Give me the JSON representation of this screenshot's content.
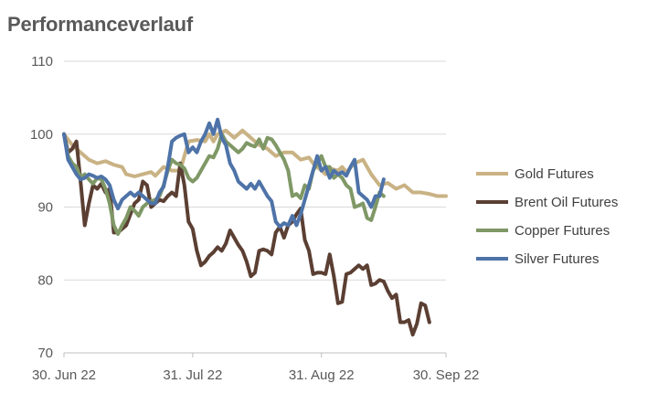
{
  "title": "Performanceverlauf",
  "chart_data": {
    "type": "line",
    "title": "Performanceverlauf",
    "xlabel": "",
    "ylabel": "",
    "ylim": [
      70,
      110
    ],
    "yticks": [
      70,
      80,
      90,
      100,
      110
    ],
    "grid": "horizontal",
    "legend_placement": "right",
    "x_tick_labels": [
      {
        "label": "30. Jun 22",
        "day": 0
      },
      {
        "label": "31. Jul 22",
        "day": 31
      },
      {
        "label": "31. Aug 22",
        "day": 62
      },
      {
        "label": "30. Sep 22",
        "day": 92
      }
    ],
    "x_range": [
      0,
      92
    ],
    "series": [
      {
        "name": "Gold Futures",
        "color": "#c9b284",
        "points": [
          [
            0,
            100
          ],
          [
            2,
            98.5
          ],
          [
            4,
            97.5
          ],
          [
            6,
            96.5
          ],
          [
            8,
            96
          ],
          [
            10,
            96.3
          ],
          [
            12,
            95.8
          ],
          [
            14,
            95.5
          ],
          [
            15,
            94.5
          ],
          [
            17,
            94.2
          ],
          [
            19,
            94.5
          ],
          [
            21,
            94.8
          ],
          [
            22,
            94.3
          ],
          [
            24,
            95.5
          ],
          [
            26,
            95
          ],
          [
            28,
            95
          ],
          [
            30,
            99
          ],
          [
            32,
            99.2
          ],
          [
            34,
            99
          ],
          [
            35,
            100
          ],
          [
            36,
            99
          ],
          [
            37,
            100
          ],
          [
            39,
            100.5
          ],
          [
            41,
            99.5
          ],
          [
            43,
            100.5
          ],
          [
            45,
            99.5
          ],
          [
            47,
            98.5
          ],
          [
            49,
            98
          ],
          [
            51,
            97
          ],
          [
            53,
            97.5
          ],
          [
            55,
            97.5
          ],
          [
            57,
            96.5
          ],
          [
            59,
            96.8
          ],
          [
            60,
            96
          ],
          [
            62,
            95
          ],
          [
            63,
            94.5
          ],
          [
            64,
            95.3
          ],
          [
            66,
            95
          ],
          [
            67,
            95.5
          ],
          [
            68,
            94.8
          ],
          [
            70,
            96
          ],
          [
            72,
            96.5
          ],
          [
            74,
            94.5
          ],
          [
            76,
            93
          ],
          [
            78,
            93.3
          ],
          [
            80,
            92.5
          ],
          [
            82,
            93
          ],
          [
            84,
            92
          ],
          [
            86,
            92
          ],
          [
            88,
            91.8
          ],
          [
            90,
            91.5
          ],
          [
            92,
            91.5
          ]
        ]
      },
      {
        "name": "Brent Oil Futures",
        "color": "#5b3f33",
        "points": [
          [
            0,
            100
          ],
          [
            1,
            97.5
          ],
          [
            2,
            98
          ],
          [
            3,
            99
          ],
          [
            4,
            93.5
          ],
          [
            5,
            87.5
          ],
          [
            6,
            90.5
          ],
          [
            7,
            93
          ],
          [
            8,
            92.5
          ],
          [
            9,
            93.2
          ],
          [
            10,
            92
          ],
          [
            11,
            92.5
          ],
          [
            12,
            86.5
          ],
          [
            13,
            86.5
          ],
          [
            14,
            87
          ],
          [
            15,
            87.5
          ],
          [
            16,
            89
          ],
          [
            17,
            90.5
          ],
          [
            18,
            91
          ],
          [
            19,
            93.5
          ],
          [
            20,
            93
          ],
          [
            21,
            90
          ],
          [
            22,
            90.5
          ],
          [
            23,
            91
          ],
          [
            24,
            90.8
          ],
          [
            25,
            91.5
          ],
          [
            26,
            92
          ],
          [
            27,
            91.5
          ],
          [
            28,
            96
          ],
          [
            29,
            93
          ],
          [
            30,
            88
          ],
          [
            31,
            87
          ],
          [
            32,
            84
          ],
          [
            33,
            82
          ],
          [
            34,
            82.5
          ],
          [
            35,
            83.3
          ],
          [
            36,
            83.8
          ],
          [
            37,
            84.5
          ],
          [
            38,
            84
          ],
          [
            39,
            85
          ],
          [
            40,
            86.8
          ],
          [
            41,
            85.8
          ],
          [
            42,
            84.8
          ],
          [
            43,
            84
          ],
          [
            44,
            82.5
          ],
          [
            45,
            80.5
          ],
          [
            46,
            81
          ],
          [
            47,
            84
          ],
          [
            48,
            84.2
          ],
          [
            49,
            84
          ],
          [
            50,
            83.5
          ],
          [
            51,
            86.5
          ],
          [
            52,
            87.3
          ],
          [
            53,
            85.8
          ],
          [
            54,
            87.5
          ],
          [
            55,
            88
          ],
          [
            56,
            89
          ],
          [
            57,
            89.8
          ],
          [
            58,
            85.5
          ],
          [
            59,
            84
          ],
          [
            60,
            80.8
          ],
          [
            61,
            81
          ],
          [
            62,
            81
          ],
          [
            63,
            80.8
          ],
          [
            64,
            83.5
          ],
          [
            65,
            80.5
          ],
          [
            66,
            76.8
          ],
          [
            67,
            77
          ],
          [
            68,
            80.8
          ],
          [
            69,
            81
          ],
          [
            70,
            81.5
          ],
          [
            71,
            82
          ],
          [
            72,
            81.5
          ],
          [
            73,
            82
          ],
          [
            74,
            79.3
          ],
          [
            75,
            79.5
          ],
          [
            76,
            80
          ],
          [
            77,
            79.8
          ],
          [
            78,
            78.5
          ],
          [
            79,
            77.5
          ],
          [
            80,
            78
          ],
          [
            81,
            74.2
          ],
          [
            82,
            74.2
          ],
          [
            83,
            74.5
          ],
          [
            84,
            72.5
          ],
          [
            85,
            74
          ],
          [
            86,
            76.8
          ],
          [
            87,
            76.5
          ],
          [
            88,
            74.2
          ]
        ]
      },
      {
        "name": "Copper Futures",
        "color": "#7f9866",
        "points": [
          [
            0,
            100
          ],
          [
            1,
            97
          ],
          [
            2,
            96
          ],
          [
            3,
            95.5
          ],
          [
            4,
            94
          ],
          [
            5,
            94.5
          ],
          [
            6,
            93.8
          ],
          [
            7,
            93.2
          ],
          [
            8,
            94
          ],
          [
            9,
            93.8
          ],
          [
            10,
            92.5
          ],
          [
            11,
            90.5
          ],
          [
            12,
            87.5
          ],
          [
            13,
            86.3
          ],
          [
            14,
            87.5
          ],
          [
            15,
            88.5
          ],
          [
            16,
            90
          ],
          [
            17,
            89.5
          ],
          [
            18,
            88.8
          ],
          [
            19,
            90
          ],
          [
            20,
            90.5
          ],
          [
            21,
            90.8
          ],
          [
            22,
            91
          ],
          [
            23,
            91.5
          ],
          [
            24,
            93
          ],
          [
            25,
            95
          ],
          [
            26,
            96.5
          ],
          [
            27,
            96
          ],
          [
            28,
            95.8
          ],
          [
            29,
            95.3
          ],
          [
            30,
            94
          ],
          [
            31,
            93.5
          ],
          [
            32,
            94
          ],
          [
            33,
            95
          ],
          [
            34,
            96
          ],
          [
            35,
            97
          ],
          [
            36,
            96.8
          ],
          [
            37,
            98
          ],
          [
            38,
            100
          ],
          [
            39,
            99
          ],
          [
            40,
            98.5
          ],
          [
            41,
            98
          ],
          [
            42,
            97.5
          ],
          [
            43,
            98
          ],
          [
            44,
            98.8
          ],
          [
            45,
            98.5
          ],
          [
            46,
            98.3
          ],
          [
            47,
            99.3
          ],
          [
            48,
            98
          ],
          [
            49,
            99.5
          ],
          [
            50,
            99.3
          ],
          [
            51,
            98.5
          ],
          [
            52,
            97.5
          ],
          [
            53,
            96.5
          ],
          [
            54,
            95
          ],
          [
            55,
            91.5
          ],
          [
            56,
            91.8
          ],
          [
            57,
            91.2
          ],
          [
            58,
            93
          ],
          [
            59,
            92.5
          ],
          [
            60,
            95
          ],
          [
            61,
            96
          ],
          [
            62,
            97
          ],
          [
            63,
            95.5
          ],
          [
            64,
            95.5
          ],
          [
            65,
            94
          ],
          [
            66,
            94.5
          ],
          [
            67,
            94
          ],
          [
            68,
            93
          ],
          [
            69,
            92.5
          ],
          [
            70,
            90
          ],
          [
            71,
            90.2
          ],
          [
            72,
            90.5
          ],
          [
            73,
            88.5
          ],
          [
            74,
            88.2
          ],
          [
            75,
            90
          ],
          [
            76,
            92
          ],
          [
            77,
            91.5
          ]
        ]
      },
      {
        "name": "Silver Futures",
        "color": "#4e73a8",
        "points": [
          [
            0,
            100
          ],
          [
            1,
            96.5
          ],
          [
            2,
            95.5
          ],
          [
            3,
            94.5
          ],
          [
            4,
            93.8
          ],
          [
            5,
            94
          ],
          [
            6,
            94.5
          ],
          [
            7,
            94.3
          ],
          [
            8,
            94
          ],
          [
            9,
            94.2
          ],
          [
            10,
            93.8
          ],
          [
            11,
            93
          ],
          [
            12,
            91
          ],
          [
            13,
            89.8
          ],
          [
            14,
            91
          ],
          [
            15,
            91.5
          ],
          [
            16,
            92
          ],
          [
            17,
            91.5
          ],
          [
            18,
            92
          ],
          [
            19,
            91.5
          ],
          [
            20,
            91
          ],
          [
            21,
            90.5
          ],
          [
            22,
            90.5
          ],
          [
            23,
            92
          ],
          [
            24,
            92.8
          ],
          [
            25,
            95.5
          ],
          [
            26,
            99
          ],
          [
            27,
            99.5
          ],
          [
            28,
            99.8
          ],
          [
            29,
            100
          ],
          [
            30,
            97.5
          ],
          [
            31,
            98.2
          ],
          [
            32,
            97.5
          ],
          [
            33,
            99
          ],
          [
            34,
            100
          ],
          [
            35,
            101.5
          ],
          [
            36,
            100
          ],
          [
            37,
            102
          ],
          [
            38,
            99.5
          ],
          [
            39,
            98.5
          ],
          [
            40,
            96
          ],
          [
            41,
            95
          ],
          [
            42,
            93.5
          ],
          [
            43,
            93
          ],
          [
            44,
            92.5
          ],
          [
            45,
            93.2
          ],
          [
            46,
            92.5
          ],
          [
            47,
            93.5
          ],
          [
            48,
            92.5
          ],
          [
            49,
            91.5
          ],
          [
            50,
            90.8
          ],
          [
            51,
            88
          ],
          [
            52,
            87.3
          ],
          [
            53,
            87.8
          ],
          [
            54,
            87.5
          ],
          [
            55,
            88.8
          ],
          [
            56,
            87.5
          ],
          [
            57,
            89
          ],
          [
            58,
            91
          ],
          [
            59,
            93
          ],
          [
            60,
            95
          ],
          [
            61,
            97
          ],
          [
            62,
            95
          ],
          [
            63,
            95.5
          ],
          [
            64,
            94
          ],
          [
            65,
            95
          ],
          [
            66,
            94.5
          ],
          [
            67,
            94.8
          ],
          [
            68,
            94.3
          ],
          [
            69,
            95.5
          ],
          [
            70,
            96.5
          ],
          [
            71,
            92
          ],
          [
            72,
            91.5
          ],
          [
            73,
            91
          ],
          [
            74,
            90
          ],
          [
            75,
            91.5
          ],
          [
            76,
            91.5
          ],
          [
            77,
            93.8
          ]
        ]
      }
    ]
  }
}
